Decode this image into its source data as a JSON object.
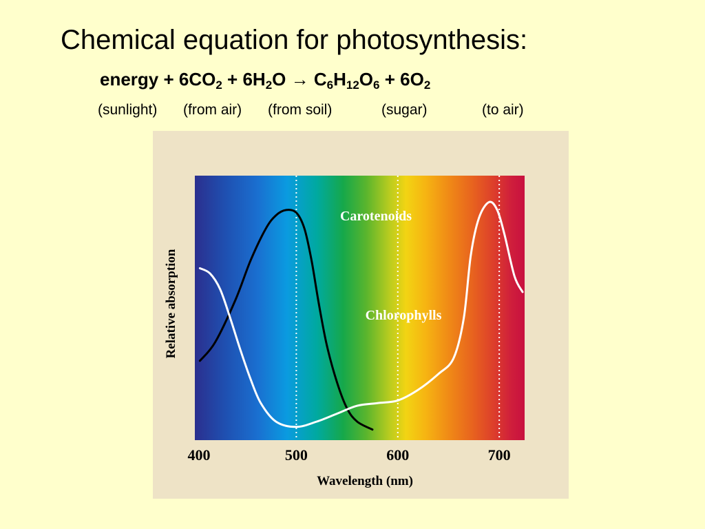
{
  "slide": {
    "title": "Chemical equation for photosynthesis:",
    "equation": {
      "energy": "energy",
      "plus1": " + 6CO",
      "co2_sub": "2",
      "plus2": " + 6H",
      "h2o_sub": "2",
      "h2o_o": "O ",
      "arrow": "→",
      "c": " C",
      "c_sub": "6",
      "h": "H",
      "h_sub": "12",
      "o": "O",
      "o_sub": "6",
      "plus3": " + 6O",
      "o2_sub": "2"
    },
    "notes": {
      "sunlight": "(sunlight)",
      "from_air": "(from air)",
      "from_soil": "(from soil)",
      "sugar": "(sugar)",
      "to_air": "(to air)"
    }
  },
  "colors": {
    "background": "#ffffcc",
    "figure_panel": "#eee3c6",
    "carotenoids_line": "#000000",
    "chlorophylls_line": "#ffffff"
  },
  "chart_data": {
    "type": "line",
    "title": "",
    "xlabel": "Wavelength (nm)",
    "ylabel": "Relative absorption",
    "xlim": [
      400,
      725
    ],
    "ylim": [
      0,
      1
    ],
    "x_ticks": [
      400,
      500,
      600,
      700
    ],
    "x_tick_labels": [
      "400",
      "500",
      "600",
      "700"
    ],
    "reference_lines_x": [
      500,
      600,
      700
    ],
    "background": "visible spectrum gradient, violet (400 nm) to red (725 nm)",
    "grid": false,
    "legend": "none; series labeled directly on the plot",
    "series": [
      {
        "name": "Carotenoids",
        "color": "#000000",
        "x": [
          405,
          420,
          440,
          455,
          470,
          480,
          490,
          500,
          508,
          515,
          522,
          530,
          540,
          550,
          560,
          575
        ],
        "y": [
          0.3,
          0.37,
          0.53,
          0.68,
          0.8,
          0.85,
          0.87,
          0.86,
          0.8,
          0.68,
          0.52,
          0.36,
          0.22,
          0.12,
          0.07,
          0.04
        ]
      },
      {
        "name": "Chlorophylls",
        "color": "#ffffff",
        "x": [
          405,
          415,
          425,
          435,
          445,
          455,
          465,
          480,
          500,
          520,
          540,
          560,
          580,
          600,
          620,
          640,
          655,
          665,
          672,
          680,
          690,
          698,
          705,
          715,
          723
        ],
        "y": [
          0.65,
          0.63,
          0.57,
          0.46,
          0.34,
          0.23,
          0.14,
          0.07,
          0.05,
          0.07,
          0.1,
          0.13,
          0.14,
          0.15,
          0.19,
          0.25,
          0.31,
          0.46,
          0.7,
          0.84,
          0.9,
          0.87,
          0.78,
          0.62,
          0.56
        ]
      }
    ]
  }
}
